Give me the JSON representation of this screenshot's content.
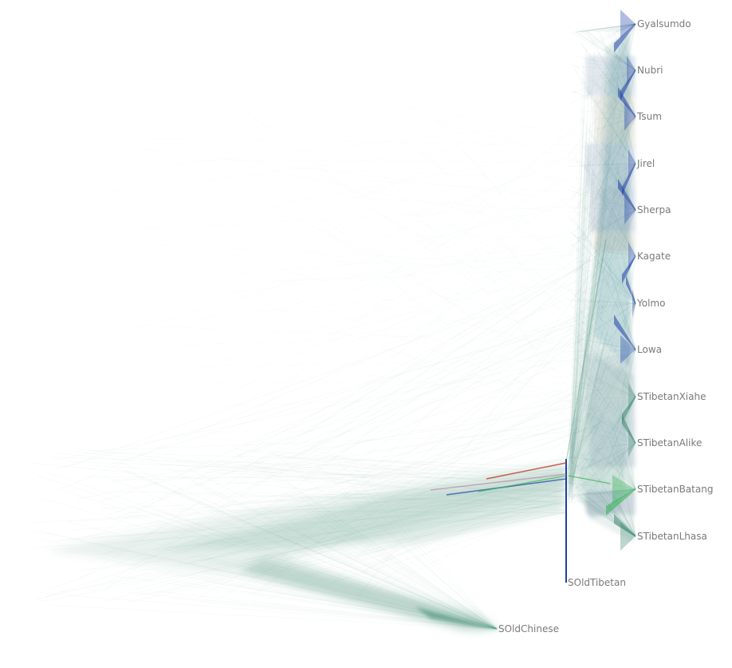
{
  "tree": {
    "leaves": [
      {
        "id": "gyalsumdo",
        "label": "Gyalsumdo"
      },
      {
        "id": "nubri",
        "label": "Nubri"
      },
      {
        "id": "tsum",
        "label": "Tsum"
      },
      {
        "id": "jirel",
        "label": "Jirel"
      },
      {
        "id": "sherpa",
        "label": "Sherpa"
      },
      {
        "id": "kagate",
        "label": "Kagate"
      },
      {
        "id": "yolmo",
        "label": "Yolmo"
      },
      {
        "id": "lowa",
        "label": "Lowa"
      },
      {
        "id": "stibetanxiahe",
        "label": "STibetanXiahe"
      },
      {
        "id": "stibetanalike",
        "label": "STibetanAlike"
      },
      {
        "id": "stibetanbatang",
        "label": "STibetanBatang"
      },
      {
        "id": "stibetanlhasa",
        "label": "STibetanLhasa"
      },
      {
        "id": "soldtibetan",
        "label": "SOldTibetan"
      },
      {
        "id": "soldchinese",
        "label": "SOldChinese"
      }
    ],
    "colors": {
      "cloud": "#3f8a72",
      "cloud_light": "#a9cfc1",
      "consensus_blue": "#1f3fa8",
      "consensus_green": "#2fb34f",
      "consensus_red": "#c0392b",
      "teal": "#4a90a4",
      "label": "#7a7a7a"
    }
  }
}
